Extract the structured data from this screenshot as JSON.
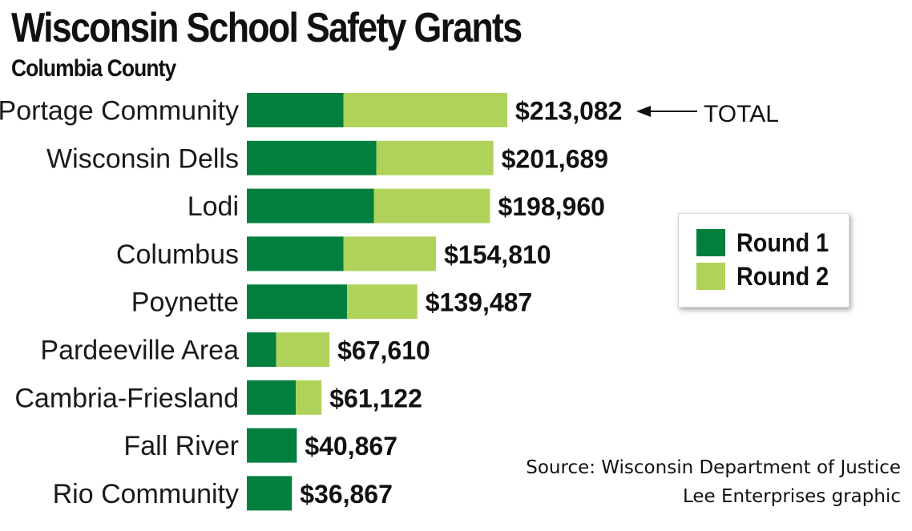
{
  "chart_data": {
    "type": "bar",
    "orientation": "horizontal",
    "stacked": true,
    "title": "Wisconsin School Safety Grants",
    "subtitle": "Columbia County",
    "categories": [
      "Portage Community",
      "Wisconsin Dells",
      "Lodi",
      "Columbus",
      "Poynette",
      "Pardeeville Area",
      "Cambria-Friesland",
      "Fall River",
      "Rio Community"
    ],
    "series": [
      {
        "name": "Round 1",
        "color": "#007f3d",
        "values": [
          79000,
          106000,
          104000,
          79000,
          82000,
          24000,
          40000,
          40867,
          36867
        ]
      },
      {
        "name": "Round 2",
        "color": "#afd35a",
        "values": [
          134082,
          95689,
          94960,
          75810,
          57487,
          43610,
          21122,
          0,
          0
        ]
      }
    ],
    "totals": [
      213082,
      201689,
      198960,
      154810,
      139487,
      67610,
      61122,
      40867,
      36867
    ],
    "total_labels": [
      "$213,082",
      "$201,689",
      "$198,960",
      "$154,810",
      "$139,487",
      "$67,610",
      "$61,122",
      "$40,867",
      "$36,867"
    ],
    "annotation": "TOTAL",
    "legend": {
      "position": "right"
    },
    "grid": false
  },
  "source": "Source: Wisconsin Department of Justice",
  "credit": "Lee Enterprises graphic"
}
